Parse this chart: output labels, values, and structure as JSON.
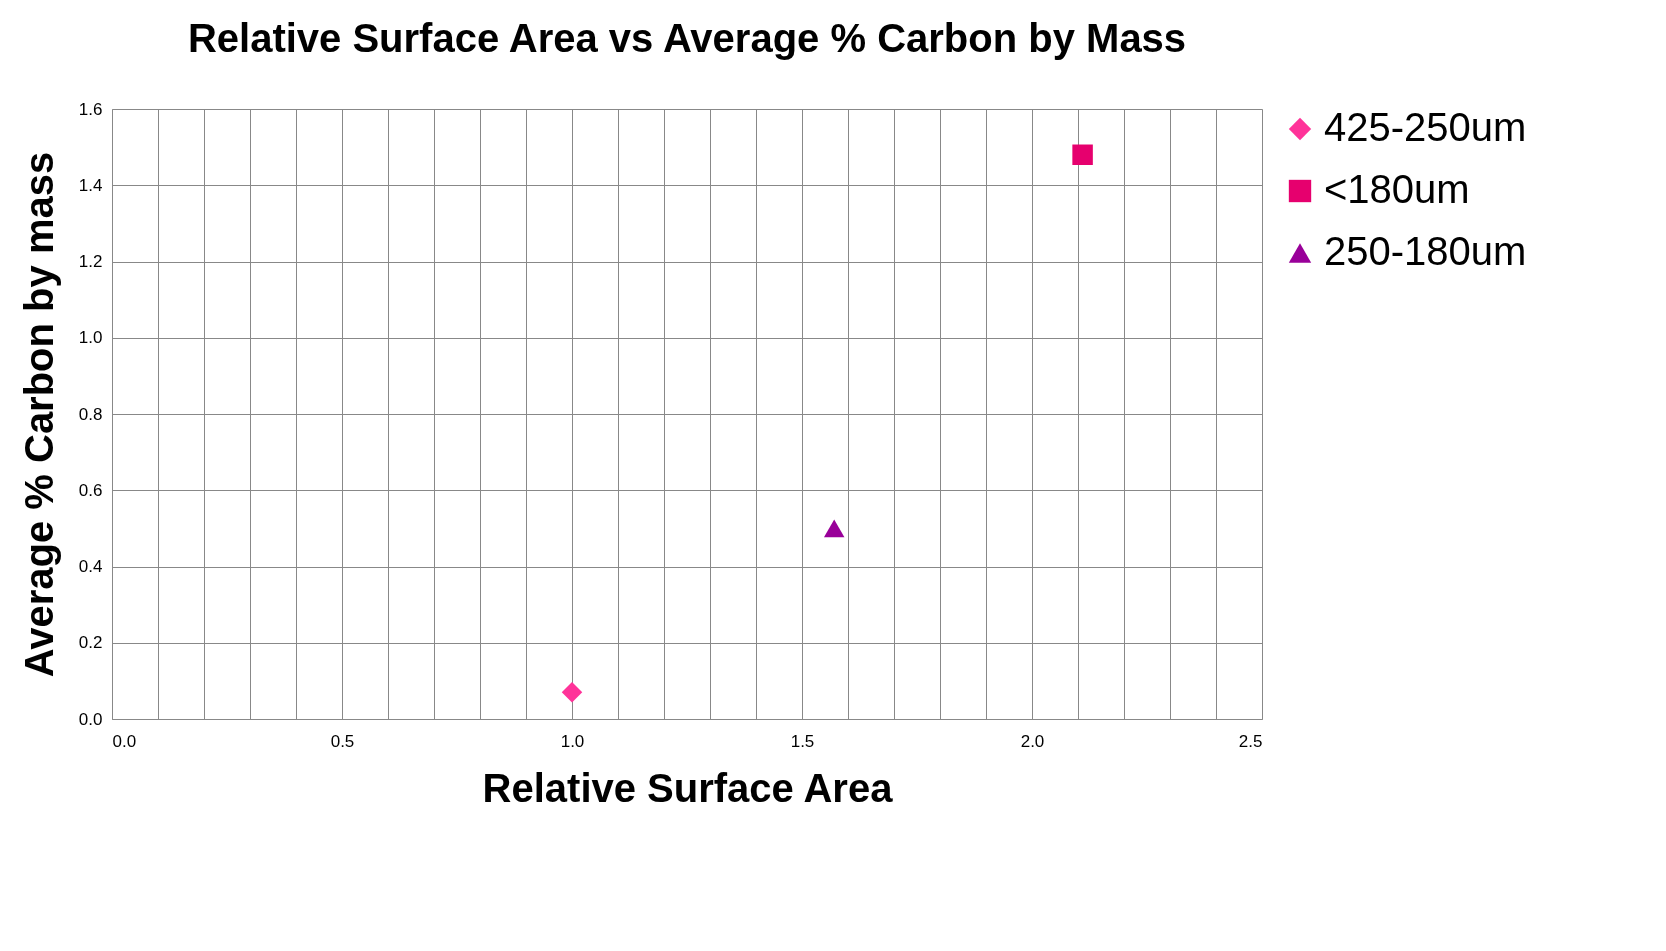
{
  "chart_data": {
    "type": "scatter",
    "title": "Relative Surface Area vs\nAverage % Carbon by Mass",
    "xlabel": "Relative Surface Area",
    "ylabel": "Average % Carbon by mass",
    "xlim": [
      0,
      2.5
    ],
    "ylim": [
      0,
      1.6
    ],
    "xticks": [
      {
        "value": 0,
        "label": "0.0"
      },
      {
        "value": 0.1,
        "label": null
      },
      {
        "value": 0.2,
        "label": null
      },
      {
        "value": 0.3,
        "label": null
      },
      {
        "value": 0.4,
        "label": null
      },
      {
        "value": 0.5,
        "label": "0.5"
      },
      {
        "value": 0.6,
        "label": null
      },
      {
        "value": 0.7,
        "label": null
      },
      {
        "value": 0.8,
        "label": null
      },
      {
        "value": 0.9,
        "label": null
      },
      {
        "value": 1.0,
        "label": "1.0"
      },
      {
        "value": 1.1,
        "label": null
      },
      {
        "value": 1.2,
        "label": null
      },
      {
        "value": 1.3,
        "label": null
      },
      {
        "value": 1.4,
        "label": null
      },
      {
        "value": 1.5,
        "label": "1.5"
      },
      {
        "value": 1.6,
        "label": null
      },
      {
        "value": 1.7,
        "label": null
      },
      {
        "value": 1.8,
        "label": null
      },
      {
        "value": 1.9,
        "label": null
      },
      {
        "value": 2.0,
        "label": "2.0"
      },
      {
        "value": 2.1,
        "label": null
      },
      {
        "value": 2.2,
        "label": null
      },
      {
        "value": 2.3,
        "label": null
      },
      {
        "value": 2.4,
        "label": null
      },
      {
        "value": 2.5,
        "label": "2.5"
      }
    ],
    "yticks": [
      {
        "value": 0,
        "label": "0.0"
      },
      {
        "value": 0.2,
        "label": "0.2"
      },
      {
        "value": 0.4,
        "label": "0.4"
      },
      {
        "value": 0.6,
        "label": "0.6"
      },
      {
        "value": 0.8,
        "label": "0.8"
      },
      {
        "value": 1.0,
        "label": "1.0"
      },
      {
        "value": 1.2,
        "label": "1.2"
      },
      {
        "value": 1.4,
        "label": "1.4"
      },
      {
        "value": 1.6,
        "label": "1.6"
      }
    ],
    "grid": true,
    "legend": "right",
    "series": [
      {
        "name": "425-250um",
        "color": "#ff3399",
        "marker": "diamond",
        "x": [
          1.0
        ],
        "values": [
          0.07
        ]
      },
      {
        "name": "<180um",
        "color": "#e6006e",
        "marker": "square",
        "x": [
          2.11
        ],
        "values": [
          1.48
        ]
      },
      {
        "name": "250-180um",
        "color": "#990099",
        "marker": "triangle",
        "x": [
          1.57
        ],
        "values": [
          0.5
        ]
      }
    ]
  }
}
